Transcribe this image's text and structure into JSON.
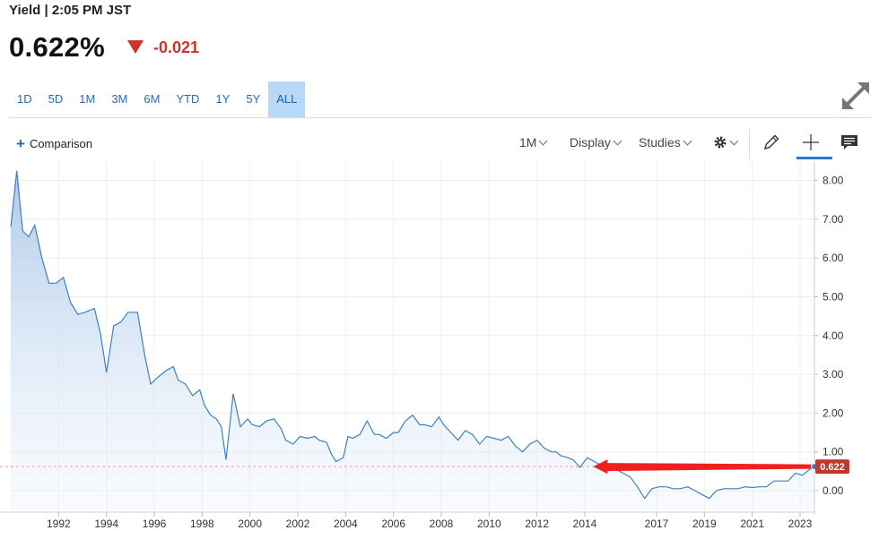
{
  "header": {
    "title": "Yield | 2:05 PM JST"
  },
  "quote": {
    "price": "0.622%",
    "change": "-0.021",
    "direction": "down",
    "down_color": "#d0312d"
  },
  "range_buttons": [
    {
      "label": "1D",
      "active": false
    },
    {
      "label": "5D",
      "active": false
    },
    {
      "label": "1M",
      "active": false
    },
    {
      "label": "3M",
      "active": false
    },
    {
      "label": "6M",
      "active": false
    },
    {
      "label": "YTD",
      "active": false
    },
    {
      "label": "1Y",
      "active": false
    },
    {
      "label": "5Y",
      "active": false
    },
    {
      "label": "ALL",
      "active": true
    }
  ],
  "toolbar": {
    "comparison_label": "Comparison",
    "interval_label": "1M",
    "display_label": "Display",
    "studies_label": "Studies",
    "icons": [
      "settings-gear-icon",
      "pencil-draw-icon",
      "crosshair-icon",
      "news-icon",
      "expand-icon"
    ]
  },
  "chart_data": {
    "type": "area",
    "title": "",
    "xlabel": "",
    "ylabel": "",
    "x_ticks": [
      "1992",
      "1994",
      "1996",
      "1998",
      "2000",
      "2002",
      "2004",
      "2006",
      "2008",
      "2010",
      "2012",
      "2014",
      "2017",
      "2019",
      "2021",
      "2023"
    ],
    "y_ticks": [
      "8.00",
      "7.00",
      "6.00",
      "5.00",
      "4.00",
      "3.00",
      "2.00",
      "1.00",
      "0.00"
    ],
    "ylim": [
      -0.35,
      8.5
    ],
    "xlim": [
      1990.0,
      2023.6
    ],
    "current_value_label": "0.622",
    "current_value": 0.622,
    "line_color": "#3d7fc0",
    "fill_color": "#b9d3ee",
    "label_color": "#c0392b",
    "annotation": "red arrow pointing left along the current value level",
    "x": [
      1990.0,
      1990.25,
      1990.5,
      1990.75,
      1991.0,
      1991.3,
      1991.6,
      1991.9,
      1992.2,
      1992.5,
      1992.8,
      1993.1,
      1993.5,
      1993.75,
      1994.0,
      1994.3,
      1994.6,
      1994.9,
      1995.3,
      1995.6,
      1995.85,
      1996.1,
      1996.5,
      1996.8,
      1997.0,
      1997.3,
      1997.6,
      1997.9,
      1998.1,
      1998.35,
      1998.6,
      1998.8,
      1999.0,
      1999.3,
      1999.6,
      1999.9,
      2000.1,
      2000.4,
      2000.7,
      2001.0,
      2001.3,
      2001.5,
      2001.8,
      2002.1,
      2002.4,
      2002.7,
      2002.9,
      2003.2,
      2003.4,
      2003.6,
      2003.9,
      2004.1,
      2004.3,
      2004.6,
      2004.9,
      2005.2,
      2005.4,
      2005.7,
      2006.0,
      2006.2,
      2006.5,
      2006.8,
      2007.1,
      2007.3,
      2007.6,
      2007.9,
      2008.1,
      2008.4,
      2008.7,
      2009.0,
      2009.3,
      2009.6,
      2009.9,
      2010.2,
      2010.5,
      2010.8,
      2011.1,
      2011.4,
      2011.7,
      2012.0,
      2012.3,
      2012.6,
      2012.8,
      2013.0,
      2013.3,
      2013.5,
      2013.8,
      2014.1,
      2014.4,
      2014.7,
      2015.0,
      2015.3,
      2015.6,
      2015.9,
      2016.2,
      2016.5,
      2016.8,
      2017.1,
      2017.4,
      2017.7,
      2018.0,
      2018.3,
      2018.6,
      2018.9,
      2019.2,
      2019.5,
      2019.8,
      2020.1,
      2020.4,
      2020.7,
      2021.0,
      2021.3,
      2021.6,
      2021.9,
      2022.2,
      2022.5,
      2022.8,
      2023.1,
      2023.4,
      2023.6
    ],
    "values": [
      6.8,
      8.25,
      6.7,
      6.55,
      6.85,
      6.0,
      5.35,
      5.35,
      5.5,
      4.85,
      4.55,
      4.6,
      4.7,
      4.05,
      3.05,
      4.25,
      4.35,
      4.6,
      4.6,
      3.5,
      2.75,
      2.9,
      3.1,
      3.2,
      2.85,
      2.75,
      2.45,
      2.6,
      2.2,
      1.95,
      1.85,
      1.65,
      0.8,
      2.5,
      1.65,
      1.85,
      1.7,
      1.65,
      1.8,
      1.85,
      1.6,
      1.3,
      1.2,
      1.4,
      1.35,
      1.4,
      1.3,
      1.25,
      0.95,
      0.75,
      0.85,
      1.4,
      1.35,
      1.45,
      1.8,
      1.45,
      1.45,
      1.35,
      1.5,
      1.5,
      1.8,
      1.95,
      1.7,
      1.7,
      1.65,
      1.9,
      1.7,
      1.5,
      1.3,
      1.55,
      1.45,
      1.2,
      1.4,
      1.35,
      1.3,
      1.4,
      1.15,
      1.0,
      1.2,
      1.3,
      1.1,
      1.0,
      1.0,
      0.9,
      0.85,
      0.8,
      0.6,
      0.85,
      0.75,
      0.65,
      0.62,
      0.55,
      0.45,
      0.35,
      0.1,
      -0.2,
      0.05,
      0.1,
      0.1,
      0.05,
      0.05,
      0.1,
      0.0,
      -0.1,
      -0.2,
      0.0,
      0.05,
      0.05,
      0.05,
      0.1,
      0.08,
      0.1,
      0.1,
      0.25,
      0.25,
      0.25,
      0.45,
      0.4,
      0.55,
      0.62
    ]
  }
}
